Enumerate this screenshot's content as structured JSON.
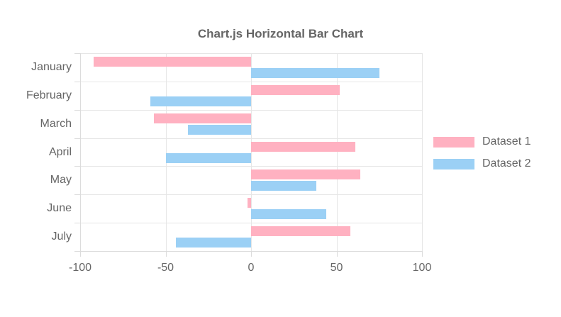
{
  "chart_data": {
    "type": "bar",
    "orientation": "horizontal",
    "title": "Chart.js Horizontal Bar Chart",
    "categories": [
      "January",
      "February",
      "March",
      "April",
      "May",
      "June",
      "July"
    ],
    "series": [
      {
        "name": "Dataset 1",
        "color": "#ffb1c1",
        "values": [
          -92,
          52,
          -57,
          61,
          64,
          -2,
          58
        ]
      },
      {
        "name": "Dataset 2",
        "color": "#9bd0f5",
        "values": [
          75,
          -59,
          -37,
          -50,
          38,
          44,
          -44
        ]
      }
    ],
    "xlim": [
      -100,
      100
    ],
    "x_ticks": [
      -100,
      -50,
      0,
      50,
      100
    ],
    "grid": true,
    "legend_position": "right",
    "colors": {
      "text": "#666666",
      "grid": "#e6e6e6",
      "axis_border": "#dcdcdc",
      "background": "#ffffff"
    }
  }
}
